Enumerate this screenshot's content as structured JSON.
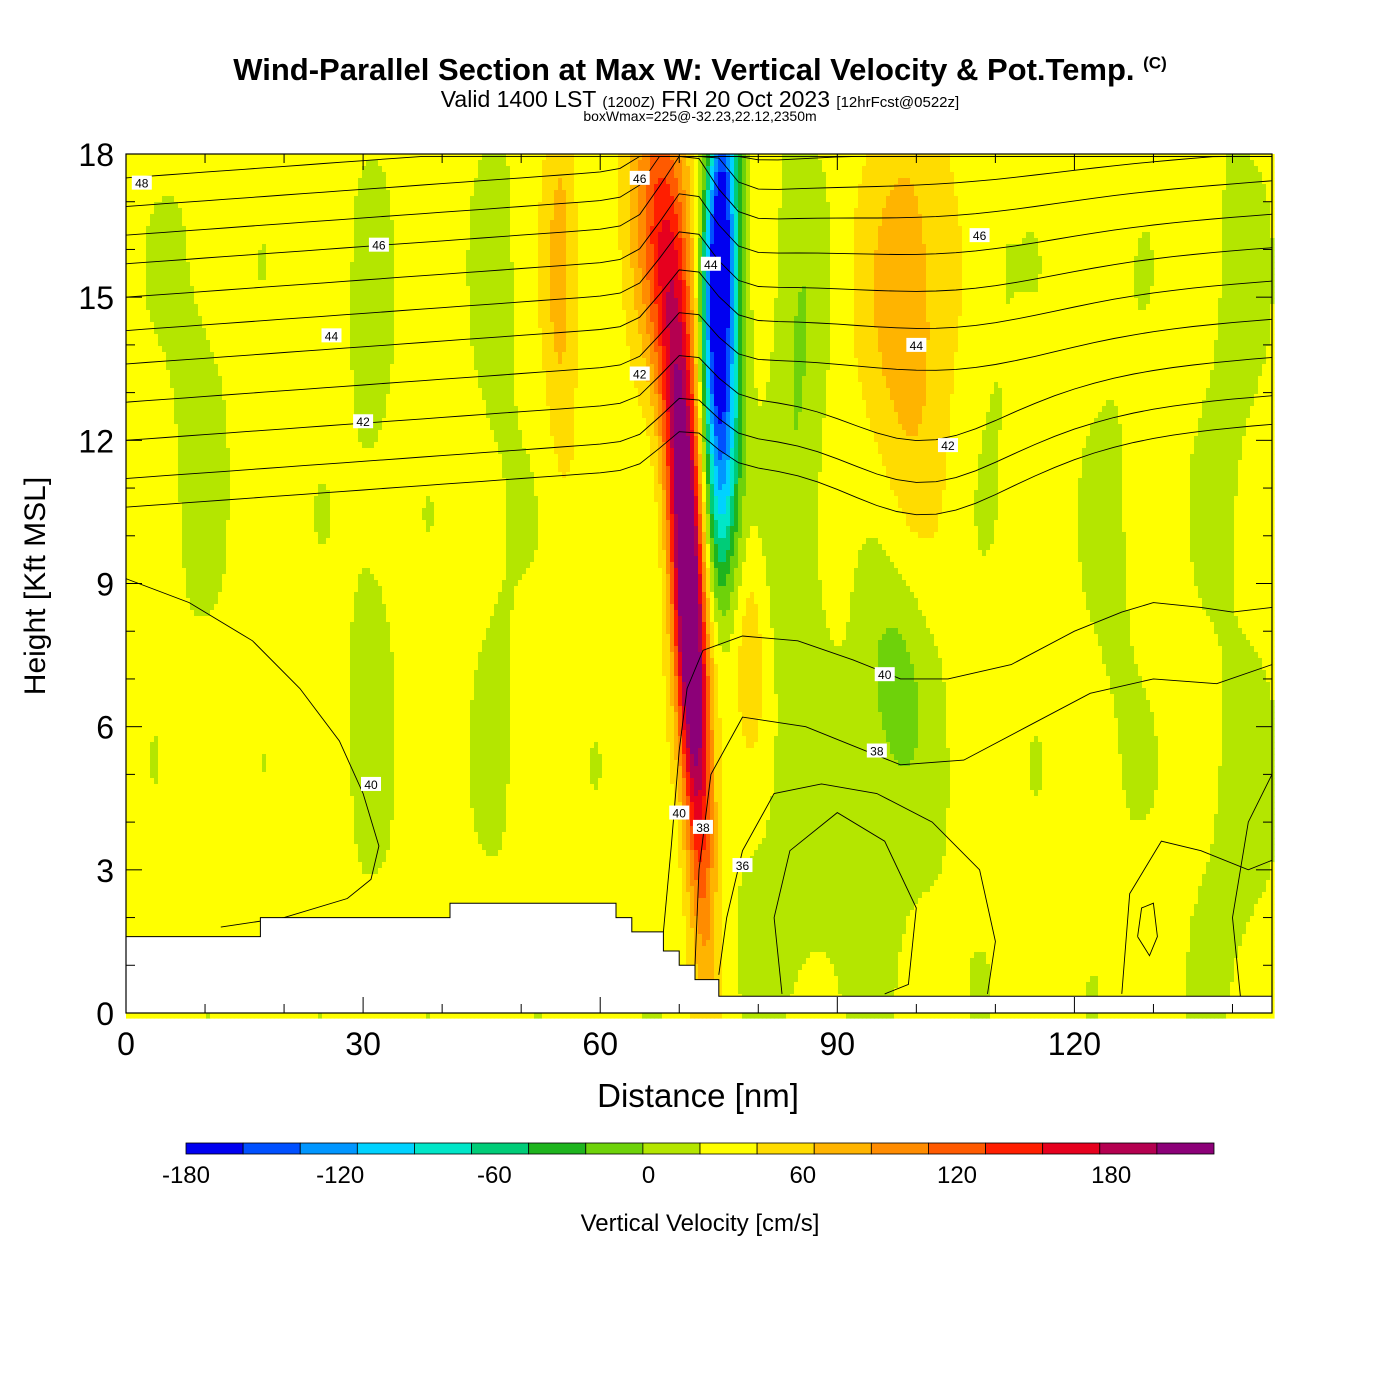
{
  "title": "Wind-Parallel Section at Max W: Vertical Velocity & Pot.Temp.",
  "copyright_mark": "(C)",
  "subtitle": {
    "valid": "Valid 1400 LST",
    "utc": "(1200Z)",
    "date": "FRI 20 Oct 2023",
    "forecast": "[12hrFcst@0522z]"
  },
  "box_info": "boxWmax=225@-32.23,22.12,2350m",
  "chart_data": {
    "type": "heatmap",
    "xlabel": "Distance [nm]",
    "ylabel": "Height [Kft MSL]",
    "xlim": [
      0,
      145
    ],
    "ylim": [
      0,
      18
    ],
    "x_ticks": [
      0,
      30,
      60,
      90,
      120
    ],
    "y_ticks": [
      0,
      3,
      6,
      9,
      12,
      15,
      18
    ],
    "colorbar": {
      "label": "Vertical Velocity [cm/s]",
      "range": [
        -180,
        220
      ],
      "step": 20,
      "tick_values": [
        -180,
        -120,
        -60,
        0,
        60,
        120,
        180
      ],
      "colors": [
        "#0000f0",
        "#0050ff",
        "#0096ff",
        "#00d2ff",
        "#00e6c8",
        "#00cc78",
        "#1eb41e",
        "#6ed20a",
        "#b4e600",
        "#ffff00",
        "#ffdc00",
        "#ffb400",
        "#ff8c00",
        "#ff5a00",
        "#ff1e00",
        "#e6001e",
        "#b40050",
        "#8c0078"
      ]
    },
    "terrain_kft": [
      [
        0,
        1.6
      ],
      [
        17,
        1.6
      ],
      [
        17,
        2.0
      ],
      [
        41,
        2.0
      ],
      [
        41,
        2.3
      ],
      [
        62,
        2.3
      ],
      [
        62,
        2.0
      ],
      [
        64,
        2.0
      ],
      [
        64,
        1.7
      ],
      [
        68,
        1.7
      ],
      [
        68,
        1.3
      ],
      [
        70,
        1.3
      ],
      [
        70,
        1.0
      ],
      [
        72,
        1.0
      ],
      [
        72,
        0.7
      ],
      [
        75,
        0.7
      ],
      [
        75,
        0.35
      ],
      [
        145,
        0.35
      ]
    ],
    "w_field": [
      {
        "x": 71.5,
        "y": 7.5,
        "sx": 1.4,
        "sy": 3.8,
        "tilt": -0.28,
        "value": 185
      },
      {
        "x": 70.5,
        "y": 12.5,
        "sx": 2.2,
        "sy": 4.0,
        "tilt": -0.45,
        "value": 80
      },
      {
        "x": 67.5,
        "y": 16.5,
        "sx": 3.0,
        "sy": 2.5,
        "tilt": -0.3,
        "value": 55
      },
      {
        "x": 55.0,
        "y": 15.5,
        "sx": 1.5,
        "sy": 3.0,
        "tilt": 0,
        "value": 38
      },
      {
        "x": 75.0,
        "y": 16.3,
        "sx": 1.4,
        "sy": 2.6,
        "tilt": 0.25,
        "value": -175
      },
      {
        "x": 75.5,
        "y": 13.0,
        "sx": 1.6,
        "sy": 2.5,
        "tilt": 0.25,
        "value": -110
      },
      {
        "x": 75.5,
        "y": 10.5,
        "sx": 1.6,
        "sy": 2.0,
        "tilt": 0.2,
        "value": -60
      },
      {
        "x": 85.0,
        "y": 12.0,
        "sx": 2.4,
        "sy": 4.5,
        "tilt": 0,
        "value": -30
      },
      {
        "x": 99.0,
        "y": 15.0,
        "sx": 3.8,
        "sy": 3.0,
        "tilt": 0.1,
        "value": 48
      },
      {
        "x": 79.0,
        "y": 7.5,
        "sx": 1.3,
        "sy": 1.5,
        "tilt": 0,
        "value": 28
      },
      {
        "x": 97.0,
        "y": 7.0,
        "sx": 3.2,
        "sy": 1.8,
        "tilt": 0,
        "value": -35
      },
      {
        "x": 9.0,
        "y": 13.5,
        "sx": 3.0,
        "sy": 4.0,
        "tilt": 0,
        "value": -14
      },
      {
        "x": 31.0,
        "y": 10.0,
        "sx": 2.5,
        "sy": 6.0,
        "tilt": 0,
        "value": -14
      },
      {
        "x": 47.0,
        "y": 12.0,
        "sx": 2.5,
        "sy": 7.0,
        "tilt": 0,
        "value": -12
      },
      {
        "x": 140.0,
        "y": 14.0,
        "sx": 3.0,
        "sy": 4.0,
        "tilt": 0,
        "value": -14
      },
      {
        "x": 88.0,
        "y": 3.0,
        "sx": 11.0,
        "sy": 2.5,
        "tilt": 0,
        "value": -16
      },
      {
        "x": 125.0,
        "y": 9.0,
        "sx": 2.5,
        "sy": 4.0,
        "tilt": 0,
        "value": -12
      },
      {
        "x": 140.0,
        "y": 3.5,
        "sx": 4.0,
        "sy": 3.0,
        "tilt": 0,
        "value": -14
      },
      {
        "x": 110.0,
        "y": 15.5,
        "sx": 2.0,
        "sy": 3.0,
        "tilt": 0,
        "value": -12
      }
    ],
    "theta_labels": [
      {
        "x": 2,
        "y": 17.4,
        "text": "48"
      },
      {
        "x": 65,
        "y": 17.5,
        "text": "46"
      },
      {
        "x": 32,
        "y": 16.1,
        "text": "46"
      },
      {
        "x": 108,
        "y": 16.3,
        "text": "46"
      },
      {
        "x": 74,
        "y": 15.7,
        "text": "44"
      },
      {
        "x": 26,
        "y": 14.2,
        "text": "44"
      },
      {
        "x": 100,
        "y": 14.0,
        "text": "44"
      },
      {
        "x": 65,
        "y": 13.4,
        "text": "42"
      },
      {
        "x": 30,
        "y": 12.4,
        "text": "42"
      },
      {
        "x": 104,
        "y": 11.9,
        "text": "42"
      },
      {
        "x": 96,
        "y": 7.1,
        "text": "40"
      },
      {
        "x": 31,
        "y": 4.8,
        "text": "40"
      },
      {
        "x": 70,
        "y": 4.2,
        "text": "40"
      },
      {
        "x": 95,
        "y": 5.5,
        "text": "38"
      },
      {
        "x": 73,
        "y": 3.9,
        "text": "38"
      },
      {
        "x": 78,
        "y": 3.1,
        "text": "36"
      }
    ]
  }
}
